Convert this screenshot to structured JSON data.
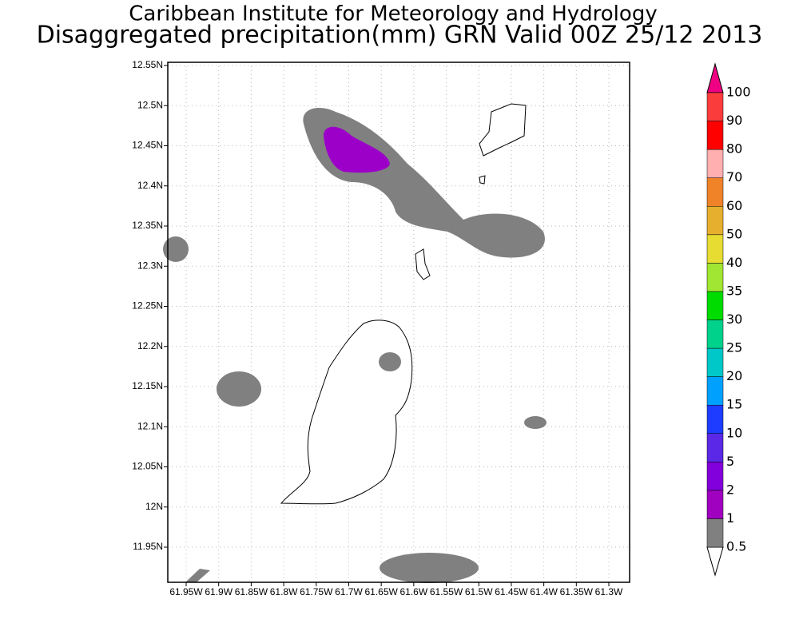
{
  "title": "Caribbean Institute for Meteorology and Hydrology",
  "subtitle": "Disaggregated precipitation(mm) GRN Valid 00Z 25/12 2013",
  "y_ticks": [
    "12.55N",
    "12.5N",
    "12.45N",
    "12.4N",
    "12.35N",
    "12.3N",
    "12.25N",
    "12.2N",
    "12.15N",
    "12.1N",
    "12.05N",
    "12N",
    "11.95N"
  ],
  "x_ticks": [
    "61.95W",
    "61.9W",
    "61.85W",
    "61.8W",
    "61.75W",
    "61.7W",
    "61.65W",
    "61.6W",
    "61.55W",
    "61.5W",
    "61.45W",
    "61.4W",
    "61.35W",
    "61.3W"
  ],
  "colorbar": {
    "labels": [
      "0.5",
      "1",
      "2",
      "5",
      "10",
      "15",
      "20",
      "25",
      "30",
      "35",
      "40",
      "50",
      "60",
      "70",
      "80",
      "90",
      "100"
    ],
    "under_color": "#ffffff",
    "colors": [
      "#808080",
      "#a000c0",
      "#8200dc",
      "#5a28e6",
      "#1e3cff",
      "#00a0ff",
      "#00c8c8",
      "#00d28c",
      "#00dc00",
      "#a0e632",
      "#e6dc32",
      "#e6af2d",
      "#f08228",
      "#ffafaf",
      "#ff0000",
      "#fa3c3c"
    ],
    "over_color": "#f00082"
  }
}
